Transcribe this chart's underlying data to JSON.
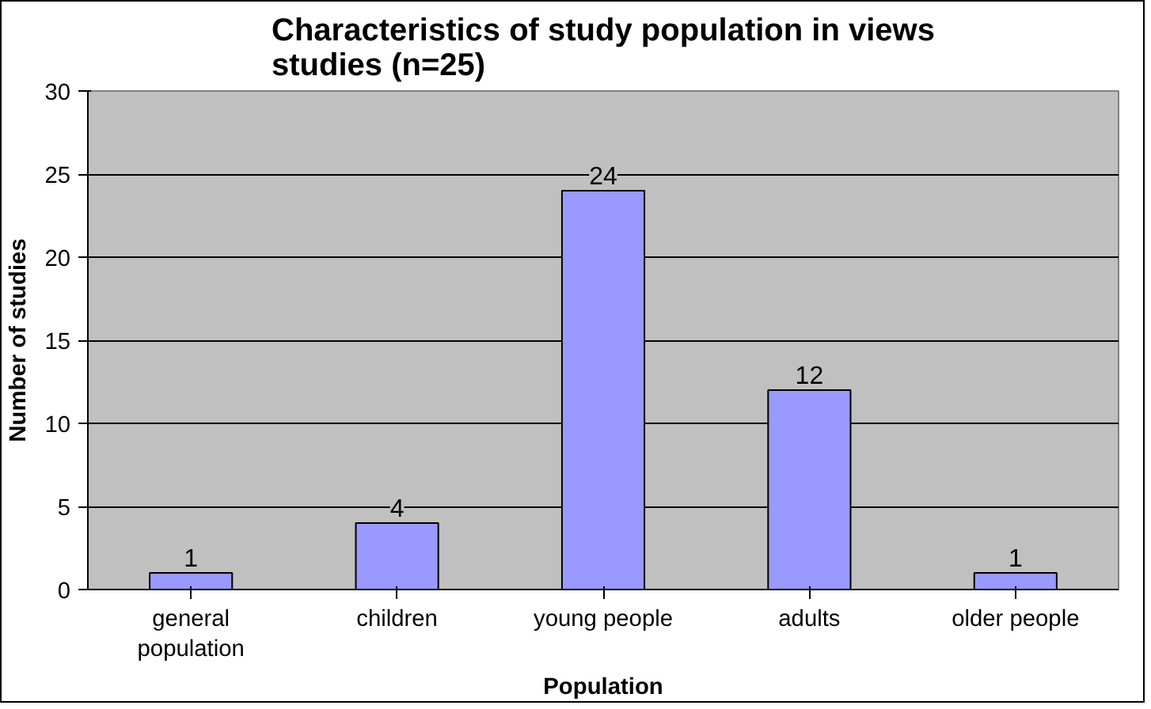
{
  "chart_data": {
    "type": "bar",
    "title": "Characteristics of study population in views studies (n=25)",
    "xlabel": "Population",
    "ylabel": "Number of studies",
    "categories": [
      "general population",
      "children",
      "young people",
      "adults",
      "older people"
    ],
    "values": [
      1,
      4,
      24,
      12,
      1
    ],
    "color": "#9999ff",
    "ylim": [
      0,
      30
    ],
    "yticks": [
      0,
      5,
      10,
      15,
      20,
      25,
      30
    ],
    "grid": "y",
    "data_labels": true
  }
}
